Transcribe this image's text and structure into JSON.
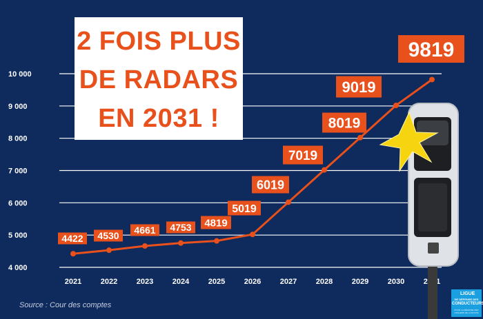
{
  "chart_data": {
    "type": "line",
    "title_lines": [
      "2 FOIS PLUS",
      "DE RADARS",
      "EN 2031 !"
    ],
    "x": [
      "2021",
      "2022",
      "2023",
      "2024",
      "2025",
      "2026",
      "2027",
      "2028",
      "2029",
      "2030",
      "2031"
    ],
    "values": [
      4422,
      4530,
      4661,
      4753,
      4819,
      5019,
      6019,
      7019,
      8019,
      9019,
      9819
    ],
    "data_labels": [
      "4422",
      "4530",
      "4661",
      "4753",
      "4819",
      "5019",
      "6019",
      "7019",
      "8019",
      "9019",
      "9819"
    ],
    "yticks": [
      4000,
      5000,
      6000,
      7000,
      8000,
      9000,
      10000
    ],
    "ytick_labels": [
      "4 000",
      "5 000",
      "6 000",
      "7 000",
      "8 000",
      "9 000",
      "10 000"
    ],
    "ylim": [
      4000,
      10000
    ],
    "grid": true,
    "colors": {
      "background": "#0f2a5c",
      "line": "#e8501c",
      "label_box": "#e8501c",
      "label_text": "#ffffff",
      "grid": "#ffffff"
    }
  },
  "source": "Source : Cour des comptes",
  "logo": {
    "line1": "LIGUE",
    "line2": "DE DÉFENSE DES",
    "line3": "CONDUCTEURS",
    "line4": "POUR LA DÉFENSE DES USAGERS DE LA ROUTE"
  },
  "icons": {
    "camera": "speed-camera-icon",
    "flash": "flash-star-icon"
  }
}
